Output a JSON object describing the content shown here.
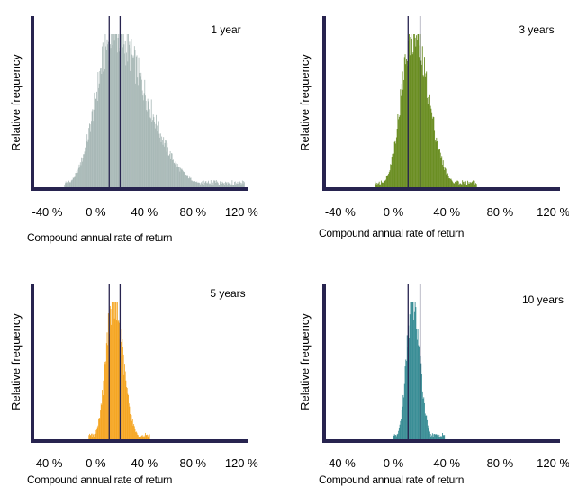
{
  "chart_data": [
    {
      "type": "bar",
      "title": "1 year",
      "xlabel": "Compound annual rate of return",
      "ylabel": "Relative frequency",
      "x_ticks": [
        "-40 %",
        "0 %",
        "40 %",
        "80 %",
        "120 %"
      ],
      "x_tick_values": [
        -40,
        0,
        40,
        80,
        120
      ],
      "xlim": [
        -50,
        125
      ],
      "color": "#a9b9b7",
      "reference_lines": [
        11,
        20
      ],
      "distribution": {
        "center": 14,
        "sd_left": 14,
        "sd_right": 27,
        "min": -26,
        "max": 122
      }
    },
    {
      "type": "bar",
      "title": "3 years",
      "xlabel": "Compound annual rate of return",
      "ylabel": "Relative frequency",
      "x_ticks": [
        "-40 %",
        "0 %",
        "40 %",
        "80 %",
        "120 %"
      ],
      "x_tick_values": [
        -40,
        0,
        40,
        80,
        120
      ],
      "xlim": [
        -50,
        125
      ],
      "color": "#6b8e23",
      "reference_lines": [
        11,
        20
      ],
      "distribution": {
        "center": 14,
        "sd_left": 8.5,
        "sd_right": 12,
        "min": -14,
        "max": 62
      }
    },
    {
      "type": "bar",
      "title": "5 years",
      "xlabel": "Compound annual rate of return",
      "ylabel": "Relative frequency",
      "x_ticks": [
        "-40 %",
        "0 %",
        "40 %",
        "80 %",
        "120 %"
      ],
      "x_tick_values": [
        -40,
        0,
        40,
        80,
        120
      ],
      "xlim": [
        -50,
        125
      ],
      "color": "#f5a623",
      "reference_lines": [
        11,
        20
      ],
      "distribution": {
        "center": 14,
        "sd_left": 6,
        "sd_right": 8,
        "min": -6,
        "max": 44
      }
    },
    {
      "type": "bar",
      "title": "10 years",
      "xlabel": "Compound annual rate of return",
      "ylabel": "Relative frequency",
      "x_ticks": [
        "-40 %",
        "0 %",
        "40 %",
        "80 %",
        "120 %"
      ],
      "x_tick_values": [
        -40,
        0,
        40,
        80,
        120
      ],
      "xlim": [
        -50,
        125
      ],
      "color": "#3b8e96",
      "reference_lines": [
        11,
        20
      ],
      "distribution": {
        "center": 14,
        "sd_left": 4.5,
        "sd_right": 5.5,
        "min": 0,
        "max": 38
      }
    }
  ],
  "colors": {
    "axis": "#27234f",
    "reference_line": "#27234f"
  }
}
